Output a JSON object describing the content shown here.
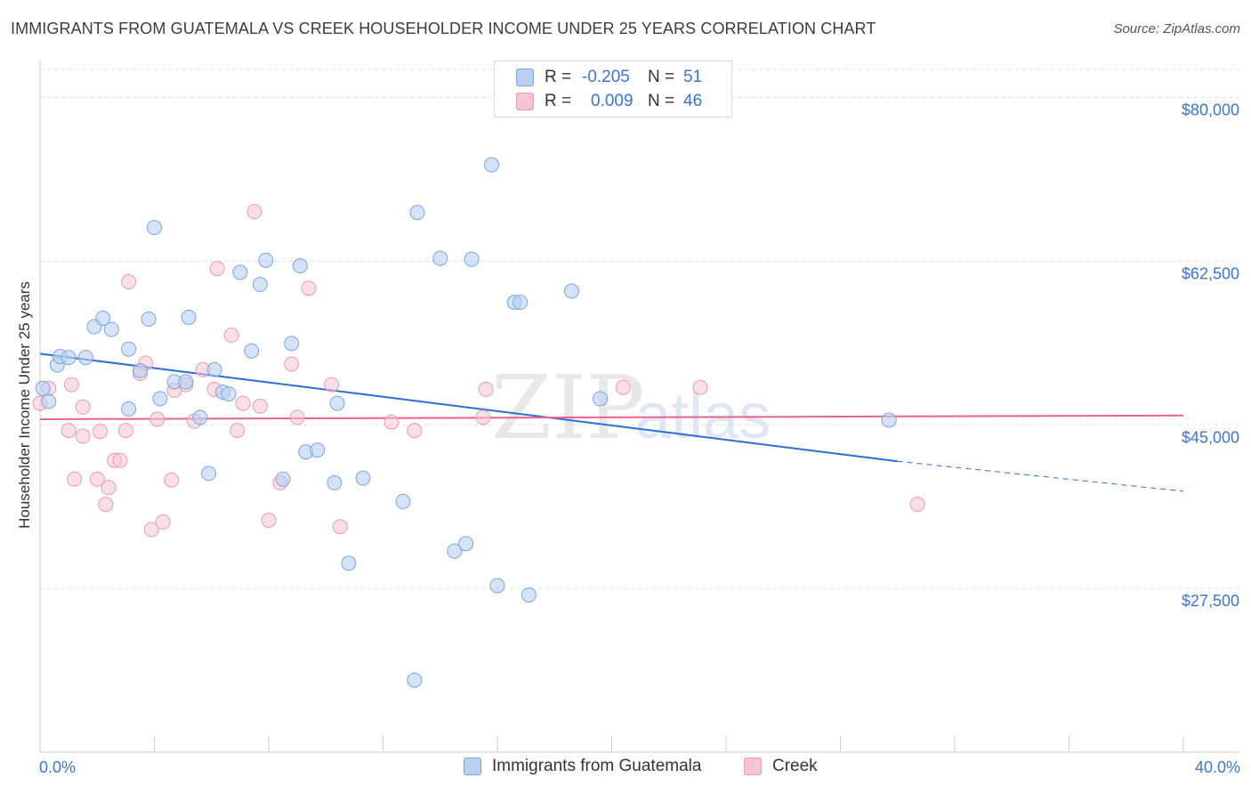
{
  "title": "IMMIGRANTS FROM GUATEMALA VS CREEK HOUSEHOLDER INCOME UNDER 25 YEARS CORRELATION CHART",
  "source": "Source: ZipAtlas.com",
  "watermark": {
    "zip": "ZIP",
    "atlas": "atlas"
  },
  "colors": {
    "blue_fill": "#b8d0f2",
    "blue_stroke": "#7aa6e0",
    "blue_line": "#2b6fd6",
    "pink_fill": "#f6c4d4",
    "pink_stroke": "#e99bb5",
    "pink_line": "#e8638f",
    "axis_label": "#3a75d6",
    "grid": "#dddddd"
  },
  "legend_top": {
    "rows": [
      {
        "r_label": "R =",
        "r_value": "-0.205",
        "n_label": "N =",
        "n_value": "51"
      },
      {
        "r_label": "R =",
        "r_value": "0.009",
        "n_label": "N =",
        "n_value": "46"
      }
    ]
  },
  "chart_data": {
    "type": "scatter",
    "title": "IMMIGRANTS FROM GUATEMALA VS CREEK HOUSEHOLDER INCOME UNDER 25 YEARS CORRELATION CHART",
    "xlabel": "",
    "ylabel": "Householder Income Under 25 years",
    "xlim": [
      0,
      40
    ],
    "ylim": [
      10000,
      83000
    ],
    "x_tick_labels": [
      "0.0%",
      "40.0%"
    ],
    "y_ticks": [
      27500,
      45000,
      62500,
      80000
    ],
    "y_tick_labels": [
      "$27,500",
      "$45,000",
      "$62,500",
      "$80,000"
    ],
    "grid": "horizontal dashed",
    "legend_placement": "top-center and bottom",
    "series": [
      {
        "name": "Immigrants from Guatemala",
        "r": -0.205,
        "n": 51,
        "trend": {
          "x0": 0,
          "y0": 52600,
          "x1": 30,
          "y1": 41100,
          "dashed_to_x": 40,
          "dashed_to_y": 37900
        },
        "points": [
          [
            0.1,
            48900
          ],
          [
            0.6,
            51400
          ],
          [
            0.7,
            52300
          ],
          [
            1.0,
            52200
          ],
          [
            1.6,
            52200
          ],
          [
            1.9,
            55500
          ],
          [
            2.2,
            56400
          ],
          [
            2.5,
            55200
          ],
          [
            3.1,
            53100
          ],
          [
            3.1,
            46700
          ],
          [
            3.5,
            50800
          ],
          [
            3.8,
            56300
          ],
          [
            4.0,
            66100
          ],
          [
            4.2,
            47800
          ],
          [
            4.7,
            49600
          ],
          [
            5.1,
            49600
          ],
          [
            5.2,
            56500
          ],
          [
            5.6,
            45800
          ],
          [
            5.9,
            39800
          ],
          [
            6.1,
            50900
          ],
          [
            6.4,
            48500
          ],
          [
            6.6,
            48300
          ],
          [
            7.0,
            61300
          ],
          [
            7.4,
            52900
          ],
          [
            7.7,
            60000
          ],
          [
            7.9,
            62600
          ],
          [
            8.5,
            39200
          ],
          [
            8.8,
            53700
          ],
          [
            9.1,
            62000
          ],
          [
            9.3,
            42100
          ],
          [
            9.7,
            42300
          ],
          [
            10.3,
            38800
          ],
          [
            10.4,
            47300
          ],
          [
            10.8,
            30200
          ],
          [
            11.3,
            39300
          ],
          [
            12.7,
            36800
          ],
          [
            13.1,
            17700
          ],
          [
            13.2,
            67700
          ],
          [
            14.0,
            62800
          ],
          [
            14.5,
            31500
          ],
          [
            14.9,
            32300
          ],
          [
            15.1,
            62700
          ],
          [
            15.8,
            72800
          ],
          [
            16.0,
            27800
          ],
          [
            16.6,
            58100
          ],
          [
            16.8,
            58100
          ],
          [
            17.1,
            26800
          ],
          [
            18.6,
            59300
          ],
          [
            19.6,
            47800
          ],
          [
            29.7,
            45500
          ],
          [
            0.3,
            47500
          ]
        ]
      },
      {
        "name": "Creek",
        "r": 0.009,
        "n": 46,
        "trend": {
          "x0": 0,
          "y0": 45600,
          "x1": 40,
          "y1": 46000
        },
        "points": [
          [
            0.0,
            47300
          ],
          [
            0.3,
            48900
          ],
          [
            1.0,
            44400
          ],
          [
            1.2,
            39200
          ],
          [
            1.1,
            49300
          ],
          [
            1.5,
            43800
          ],
          [
            1.5,
            46900
          ],
          [
            2.0,
            39200
          ],
          [
            2.1,
            44300
          ],
          [
            2.3,
            36500
          ],
          [
            2.4,
            38300
          ],
          [
            2.6,
            41200
          ],
          [
            2.8,
            41200
          ],
          [
            3.0,
            44400
          ],
          [
            3.1,
            60300
          ],
          [
            3.5,
            50500
          ],
          [
            3.7,
            51600
          ],
          [
            3.9,
            33800
          ],
          [
            4.1,
            45600
          ],
          [
            4.3,
            34600
          ],
          [
            4.6,
            39100
          ],
          [
            4.7,
            48700
          ],
          [
            5.1,
            49300
          ],
          [
            5.4,
            45400
          ],
          [
            5.7,
            50900
          ],
          [
            6.1,
            48800
          ],
          [
            6.2,
            61700
          ],
          [
            6.7,
            54600
          ],
          [
            6.9,
            44400
          ],
          [
            7.1,
            47300
          ],
          [
            7.5,
            67800
          ],
          [
            7.7,
            47000
          ],
          [
            8.0,
            34800
          ],
          [
            8.4,
            38800
          ],
          [
            8.8,
            51500
          ],
          [
            9.0,
            45800
          ],
          [
            9.4,
            59600
          ],
          [
            10.2,
            49300
          ],
          [
            10.5,
            34100
          ],
          [
            12.3,
            45300
          ],
          [
            13.1,
            44400
          ],
          [
            15.5,
            45800
          ],
          [
            15.6,
            48800
          ],
          [
            20.4,
            49000
          ],
          [
            23.1,
            49000
          ],
          [
            30.7,
            36500
          ]
        ]
      }
    ]
  },
  "bottom_legend": [
    "Immigrants from Guatemala",
    "Creek"
  ]
}
